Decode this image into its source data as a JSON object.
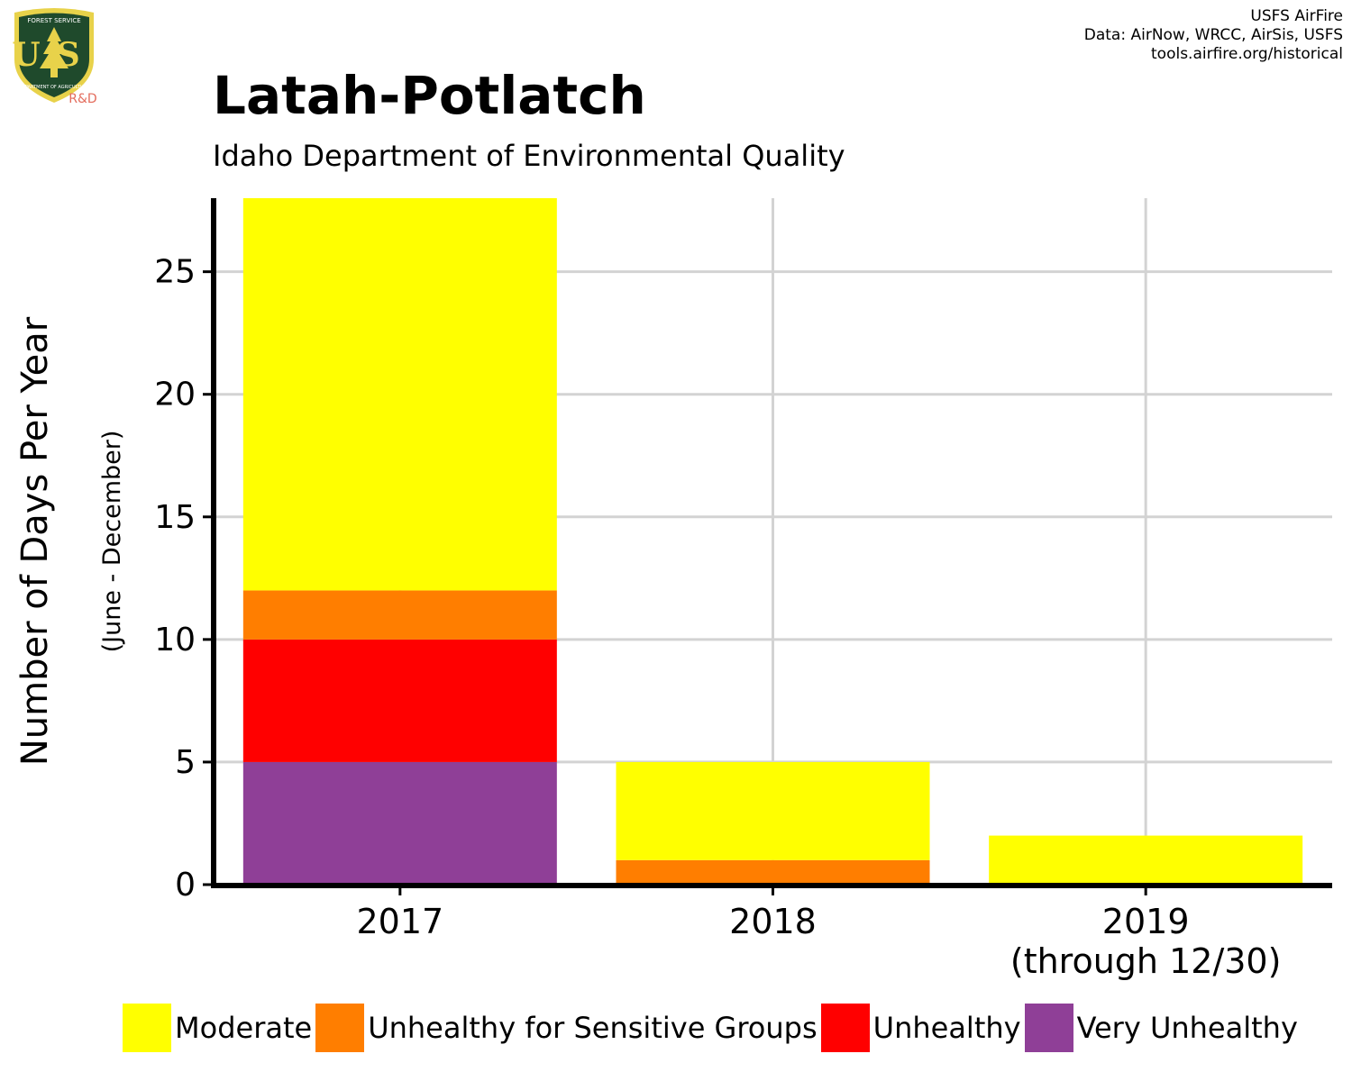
{
  "header": {
    "title": "Latah-Potlatch",
    "subtitle": "Idaho Department of Environmental Quality",
    "credits": [
      "USFS AirFire",
      "Data: AirNow, WRCC, AirSis, USFS",
      "tools.airfire.org/historical"
    ],
    "logo": {
      "icon": "forest-service-shield-icon",
      "top_text": "FOREST SERVICE",
      "main_text": "US",
      "bottom_text": "DEPARTMENT OF AGRICULTURE",
      "rd_label": "R&D",
      "colors": {
        "shield": "#1f4a2c",
        "border": "#e8d24a",
        "rd": "#e36c5c"
      }
    }
  },
  "chart_data": {
    "type": "bar",
    "stacked": true,
    "categories": [
      "2017",
      "2018",
      "2019"
    ],
    "category_sublabels": [
      "",
      "",
      "(through 12/30)"
    ],
    "series": [
      {
        "name": "Very Unhealthy",
        "color": "#8f3f97",
        "values": [
          5,
          0,
          0
        ]
      },
      {
        "name": "Unhealthy",
        "color": "#ff0000",
        "values": [
          5,
          0,
          0
        ]
      },
      {
        "name": "Unhealthy for Sensitive Groups",
        "color": "#ff7e00",
        "values": [
          2,
          1,
          0
        ]
      },
      {
        "name": "Moderate",
        "color": "#ffff00",
        "values": [
          16,
          4,
          2
        ]
      }
    ],
    "ylabel": "Number of Days Per Year",
    "ylabel_sub": "(June - December)",
    "ylim": [
      0,
      28
    ],
    "yticks": [
      0,
      5,
      10,
      15,
      20,
      25
    ],
    "grid": true,
    "legend_position": "bottom",
    "legend_order": [
      "Moderate",
      "Unhealthy for Sensitive Groups",
      "Unhealthy",
      "Very Unhealthy"
    ]
  }
}
